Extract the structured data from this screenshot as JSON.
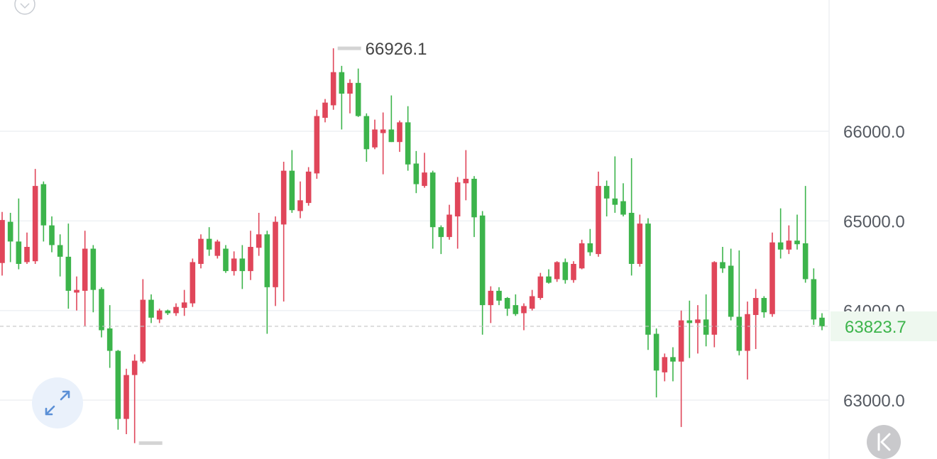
{
  "chart_data": {
    "type": "candlestick",
    "up_color": "#e0465a",
    "down_color": "#3cb44b",
    "grid": true,
    "ylim": [
      62343,
      67465
    ],
    "yticks": [
      {
        "value": 63000,
        "label": "63000.0"
      },
      {
        "value": 64000,
        "label": "64000.0"
      },
      {
        "value": 65000,
        "label": "65000.0"
      },
      {
        "value": 66000,
        "label": "66000.0"
      }
    ],
    "open": [
      64530,
      64990,
      64770,
      64540,
      64550,
      65410,
      64950,
      64730,
      64600,
      64200,
      64220,
      64690,
      64240,
      63800,
      63550,
      62790,
      63280,
      63430,
      64120,
      63900,
      64000,
      63970,
      64030,
      64080,
      64520,
      64800,
      64610,
      64690,
      64440,
      64580,
      64440,
      64700,
      64850,
      64260,
      64960,
      65560,
      65110,
      65200,
      65530,
      66150,
      66290,
      66660,
      66420,
      66540,
      66170,
      65820,
      65980,
      66020,
      65880,
      66100,
      65640,
      65390,
      65540,
      64930,
      64820,
      65050,
      65420,
      65470,
      65060,
      64060,
      64220,
      64140,
      64060,
      63970,
      64020,
      64140,
      64380,
      64350,
      64540,
      64340,
      64470,
      64750,
      64630,
      65390,
      65250,
      65220,
      65090,
      64520,
      64970,
      63740,
      63310,
      63480,
      63430,
      63890,
      63860,
      63900,
      63730,
      64540,
      64500,
      63930,
      63550,
      63950,
      64140,
      63960,
      64760,
      64680,
      64780,
      64750,
      64350,
      63920
    ],
    "high": [
      65100,
      65090,
      65250,
      64870,
      65580,
      65440,
      65050,
      64850,
      64970,
      64380,
      64890,
      64730,
      64260,
      64060,
      63560,
      63350,
      63510,
      64350,
      64180,
      64020,
      64010,
      64080,
      64230,
      64580,
      64850,
      64930,
      64790,
      64730,
      64660,
      64730,
      64890,
      65090,
      64890,
      65050,
      65660,
      65790,
      65440,
      65600,
      66240,
      66360,
      66926.1,
      66730,
      66580,
      66700,
      66200,
      66130,
      66210,
      66400,
      66120,
      66280,
      65780,
      65760,
      65560,
      64950,
      65180,
      65490,
      65790,
      65500,
      65110,
      64270,
      64260,
      64150,
      64180,
      64080,
      64230,
      64420,
      64460,
      64550,
      64580,
      64550,
      64790,
      64910,
      65550,
      65450,
      65720,
      65420,
      65700,
      65070,
      65030,
      63800,
      63520,
      63590,
      64000,
      64110,
      64060,
      64180,
      64550,
      64710,
      64690,
      64670,
      64100,
      64240,
      64160,
      64870,
      65140,
      64950,
      65070,
      65390,
      64470,
      63970
    ],
    "low": [
      64390,
      64540,
      64460,
      64520,
      64520,
      64770,
      64650,
      64380,
      64020,
      64000,
      63820,
      63980,
      63700,
      63360,
      62670,
      62620,
      62520,
      63410,
      63860,
      63860,
      63950,
      63940,
      63940,
      64040,
      64470,
      64610,
      64580,
      64420,
      64390,
      64240,
      64340,
      64610,
      63740,
      64050,
      64100,
      65090,
      65030,
      65170,
      65470,
      66100,
      66240,
      66020,
      66200,
      66160,
      65660,
      65800,
      65520,
      65880,
      65770,
      65560,
      65310,
      65370,
      64690,
      64630,
      64790,
      64690,
      65230,
      64820,
      63730,
      63860,
      64060,
      63940,
      63940,
      63780,
      64000,
      64120,
      64300,
      64320,
      64300,
      64310,
      64460,
      64610,
      64600,
      65050,
      65090,
      65050,
      64390,
      64490,
      63560,
      63030,
      63210,
      63210,
      62700,
      63470,
      63520,
      63600,
      63590,
      64420,
      63890,
      63500,
      63230,
      63570,
      63920,
      63930,
      64580,
      64630,
      64680,
      64310,
      63840,
      63780
    ],
    "close": [
      65010,
      64770,
      64520,
      64710,
      65390,
      64950,
      64730,
      64600,
      64220,
      64230,
      64690,
      64230,
      63780,
      63550,
      62790,
      63280,
      63440,
      64120,
      63920,
      64000,
      63970,
      64040,
      64090,
      64540,
      64800,
      64680,
      64770,
      64440,
      64580,
      64440,
      64710,
      64850,
      64260,
      64990,
      65560,
      65120,
      65230,
      65550,
      66170,
      66320,
      66660,
      66420,
      66540,
      66170,
      65800,
      66020,
      66020,
      65880,
      66100,
      65630,
      65410,
      65540,
      64930,
      64820,
      65070,
      65430,
      65470,
      65040,
      64060,
      64220,
      64110,
      64020,
      63960,
      64050,
      64160,
      64380,
      64310,
      64540,
      64340,
      64520,
      64750,
      64650,
      65390,
      65250,
      65180,
      65070,
      64520,
      64970,
      63730,
      63330,
      63480,
      63430,
      63890,
      63860,
      63900,
      63730,
      64540,
      64470,
      63930,
      63550,
      63960,
      64140,
      63980,
      64760,
      64680,
      64780,
      64740,
      64350,
      63900,
      63823.7
    ]
  }
}
